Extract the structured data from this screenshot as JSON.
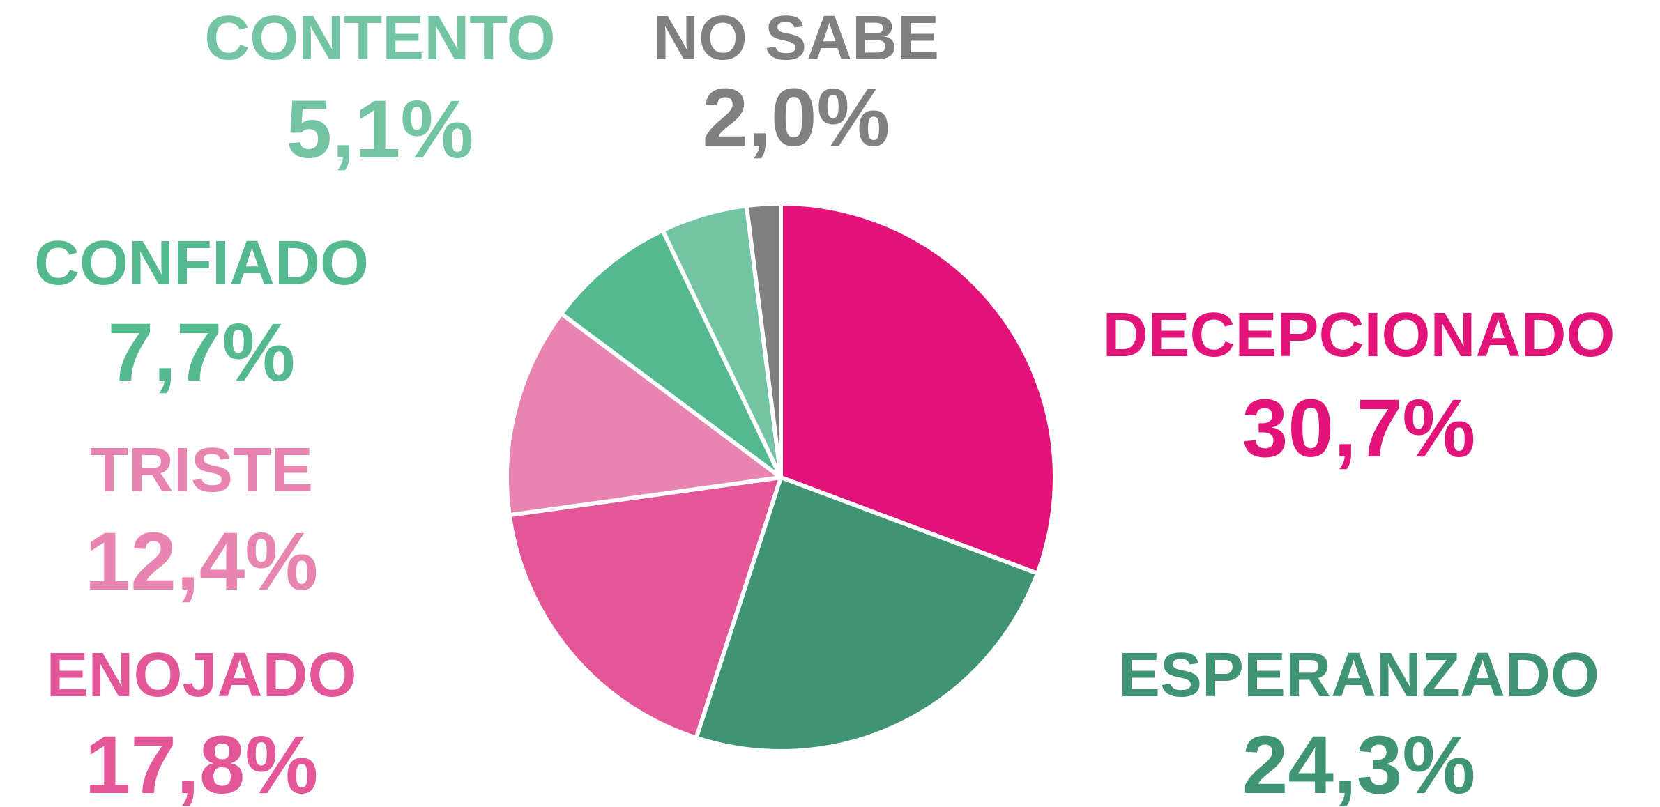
{
  "chart_data": {
    "type": "pie",
    "categories": [
      "DECEPCIONADO",
      "ESPERANZADO",
      "ENOJADO",
      "TRISTE",
      "CONFIADO",
      "CONTENTO",
      "NO SABE"
    ],
    "values": [
      30.7,
      24.3,
      17.8,
      12.4,
      7.7,
      5.1,
      2.0
    ],
    "value_labels": [
      "30,7%",
      "24,3%",
      "17,8%",
      "12,4%",
      "7,7%",
      "5,1%",
      "2,0%"
    ],
    "colors": [
      "#e2147a",
      "#3f9474",
      "#e35799",
      "#e884b0",
      "#55b98f",
      "#72c4a3",
      "#808080"
    ],
    "start_angle": 0,
    "direction": "clockwise"
  }
}
